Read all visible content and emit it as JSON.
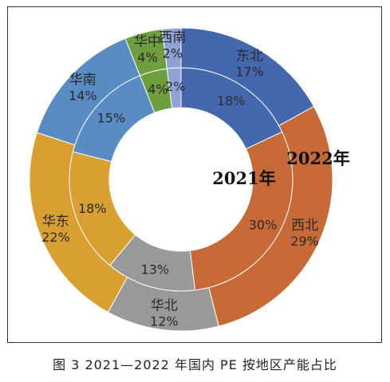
{
  "caption": "图 3  2021—2022 年国内 PE 按地区产能占比",
  "chart_data": {
    "type": "pie",
    "subtype": "double-donut",
    "categories": [
      "东北",
      "西北",
      "华北",
      "华东",
      "华南",
      "华中",
      "西南"
    ],
    "series": [
      {
        "name": "2021年",
        "ring": "inner",
        "values": [
          18,
          30,
          13,
          18,
          15,
          4,
          2
        ]
      },
      {
        "name": "2022年",
        "ring": "outer",
        "values": [
          17,
          29,
          12,
          22,
          14,
          4,
          2
        ]
      }
    ],
    "colors": {
      "东北": "#4468ad",
      "西北": "#c86a37",
      "华北": "#999999",
      "华东": "#d9a031",
      "华南": "#5a8cc4",
      "华中": "#6e9e3e",
      "西南": "#8fa2d8"
    },
    "ring_labels": {
      "inner": "2021年",
      "outer": "2022年"
    },
    "legend": "none",
    "grid": false
  }
}
